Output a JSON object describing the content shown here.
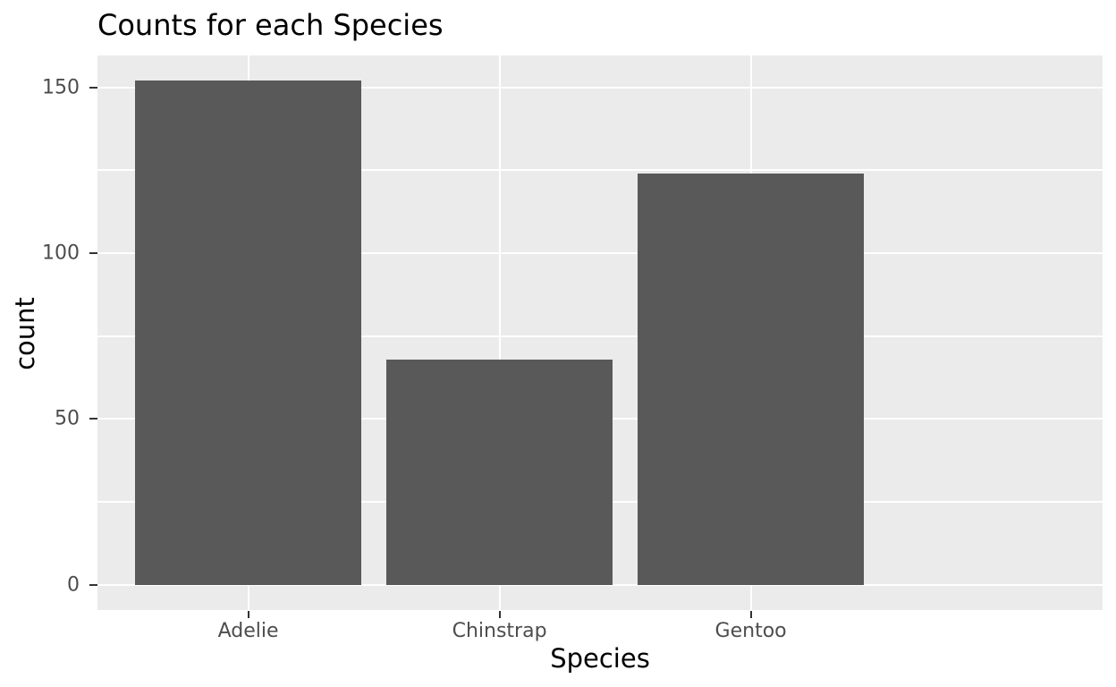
{
  "chart_data": {
    "type": "bar",
    "title": "Counts for each Species",
    "xlabel": "Species",
    "ylabel": "count",
    "categories": [
      "Adelie",
      "Chinstrap",
      "Gentoo"
    ],
    "values": [
      152,
      68,
      124
    ],
    "yticks": [
      0,
      50,
      100,
      150
    ],
    "yticks_minor": [
      25,
      75,
      125
    ],
    "ylim": [
      -7.6,
      159.6
    ],
    "grid": true,
    "legend": "none",
    "bar_width_fraction": 0.9,
    "category_axis_expand": 0.6,
    "colors": {
      "bar_fill": "#595959",
      "panel_background": "#EBEBEB",
      "gridline": "#FFFFFF",
      "tick_label": "#4D4D4D",
      "tick_mark": "#333333",
      "title": "#000000",
      "axis_title": "#000000",
      "page_background": "#FFFFFF"
    }
  }
}
